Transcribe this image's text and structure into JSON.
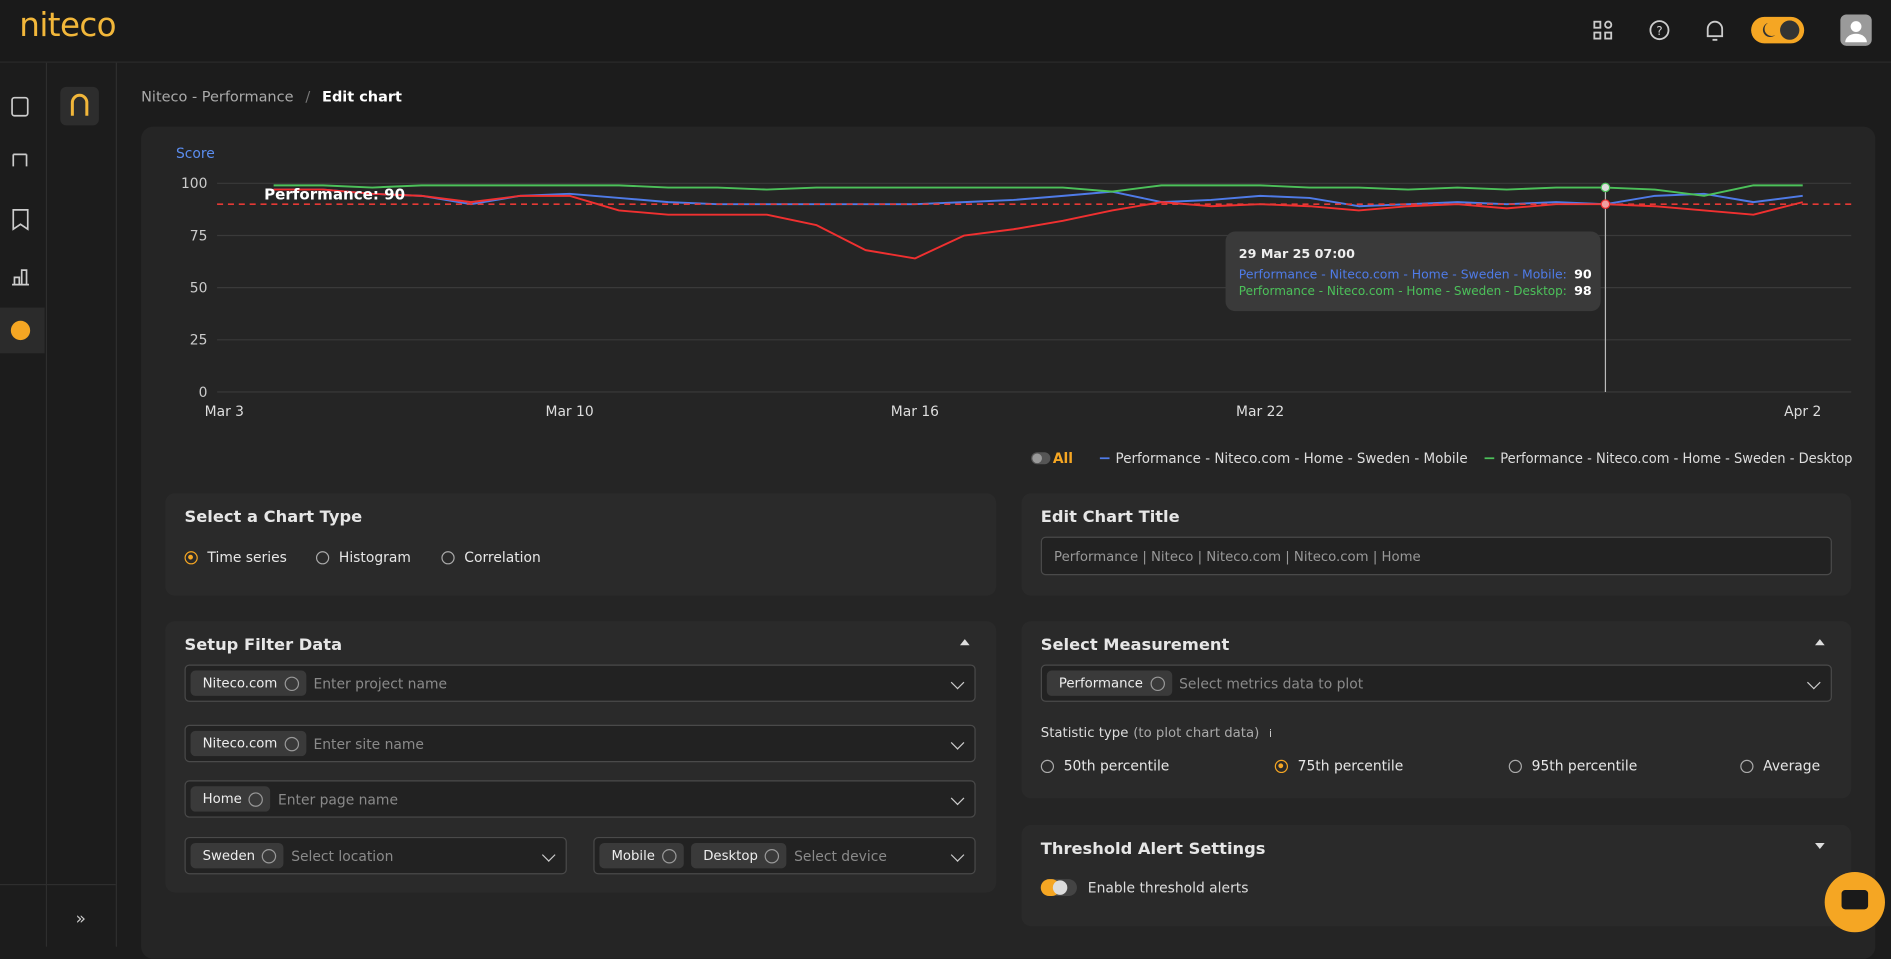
{
  "header": {
    "logo": "niteco"
  },
  "breadcrumb": {
    "parent": "Niteco - Performance",
    "current": "Edit chart"
  },
  "chart_data": {
    "type": "line",
    "y_label": "Score",
    "categories": [
      "Mar 3",
      null,
      null,
      null,
      null,
      null,
      null,
      "Mar 10",
      null,
      null,
      null,
      null,
      null,
      null,
      "Mar 16",
      null,
      null,
      null,
      null,
      null,
      null,
      "Mar 22",
      null,
      null,
      null,
      null,
      null,
      null,
      null,
      null,
      null,
      null,
      "Apr 2"
    ],
    "ylim": [
      0,
      100
    ],
    "yticks": [
      0,
      25,
      50,
      75,
      100
    ],
    "grid": true,
    "series": [
      {
        "name": "Performance - Niteco.com - Home - Sweden - Mobile",
        "color": "#4f7be8",
        "values": [
          null,
          97,
          97,
          95,
          94,
          90,
          94,
          95,
          93,
          91,
          90,
          90,
          90,
          90,
          90,
          91,
          92,
          94,
          96,
          91,
          92,
          94,
          93,
          89,
          90,
          91,
          90,
          91,
          90,
          94,
          95,
          91,
          94
        ]
      },
      {
        "name": "Performance - Niteco.com - Home - Sweden - Desktop",
        "color": "#4cc15a",
        "values": [
          null,
          99,
          99,
          98,
          99,
          99,
          99,
          99,
          99,
          98,
          98,
          97,
          98,
          98,
          98,
          98,
          98,
          98,
          96,
          99,
          99,
          99,
          98,
          98,
          97,
          98,
          97,
          98,
          98,
          97,
          94,
          99,
          99
        ]
      },
      {
        "color": "#f03030",
        "values": [
          null,
          97,
          97,
          95,
          94,
          91,
          94,
          94,
          87,
          85,
          85,
          85,
          80,
          68,
          64,
          75,
          78,
          82,
          87,
          91,
          89,
          90,
          89,
          87,
          89,
          90,
          88,
          90,
          90,
          89,
          87,
          85,
          91
        ]
      }
    ],
    "threshold": 90,
    "threshold_label": "Performance: 90",
    "threshold_color": "#e53935",
    "legend_all": "All",
    "tooltip": {
      "index": 28,
      "date": "29 Mar 25 07:00",
      "labels": [
        "Performance - Niteco.com - Home - Sweden - Mobile:",
        "Performance - Niteco.com - Home - Sweden - Desktop:"
      ]
    }
  },
  "chart_type": {
    "title": "Select a Chart Type",
    "options": [
      "Time series",
      "Histogram",
      "Correlation"
    ],
    "selected": 0
  },
  "chart_title": {
    "title": "Edit Chart Title",
    "value": "Performance | Niteco | Niteco.com | Niteco.com | Home"
  },
  "filter": {
    "title": "Setup Filter Data",
    "fields": [
      {
        "tags": [
          "Niteco.com"
        ],
        "placeholder": "Enter project name"
      },
      {
        "tags": [
          "Niteco.com"
        ],
        "placeholder": "Enter site name"
      },
      {
        "tags": [
          "Home"
        ],
        "placeholder": "Enter page name"
      },
      {
        "tags": [
          "Sweden"
        ],
        "placeholder": "Select location"
      },
      {
        "tags": [
          "Mobile",
          "Desktop"
        ],
        "placeholder": "Select device"
      }
    ]
  },
  "measurement": {
    "title": "Select Measurement",
    "tags": [
      "Performance"
    ],
    "placeholder": "Select metrics data to plot",
    "statistic_label": "Statistic type",
    "statistic_hint": "(to plot chart data)",
    "options": [
      "50th percentile",
      "75th percentile",
      "95th percentile",
      "Average"
    ],
    "selected": 1
  },
  "threshold_alert": {
    "title": "Threshold Alert Settings",
    "toggle_label": "Enable threshold alerts"
  }
}
